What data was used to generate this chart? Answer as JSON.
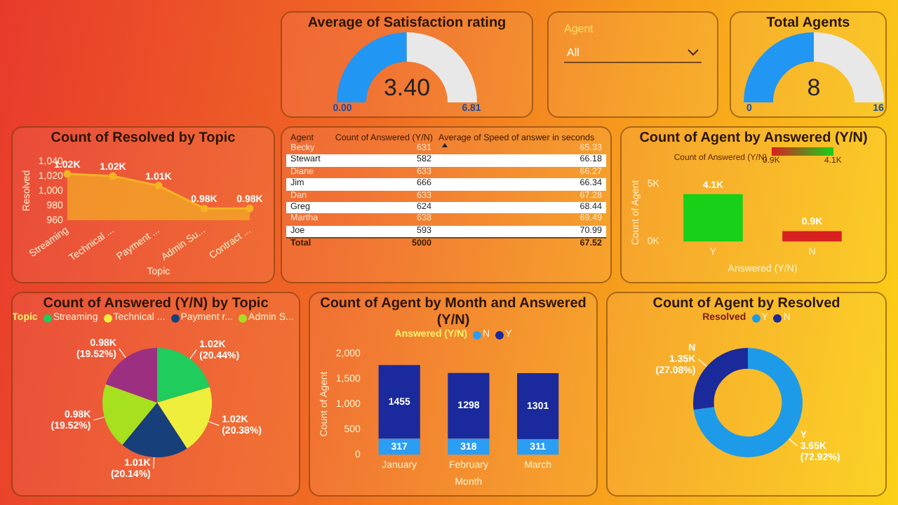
{
  "chart_data": [
    {
      "type": "donut",
      "title": "Average of Satisfaction rating",
      "categories": [
        null,
        null
      ],
      "values": [
        3.4,
        3.41
      ],
      "value_labels": [
        "3.40",
        null
      ],
      "colors": [
        "#2196f3",
        "#e8e8e8"
      ],
      "annotations": [
        "0.00",
        "6.81"
      ]
    },
    {
      "type": "other",
      "title": "Agent",
      "annotations": [
        "All"
      ]
    },
    {
      "type": "donut",
      "title": "Total Agents",
      "categories": [
        null,
        null
      ],
      "values": [
        8,
        8
      ],
      "value_labels": [
        "8",
        null
      ],
      "colors": [
        "#2196f3",
        "#e8e8e8"
      ],
      "annotations": [
        "0",
        "16"
      ]
    },
    {
      "type": "area",
      "title": "Count of Resolved by Topic",
      "categories": [
        "Streaming",
        "Technical ...",
        "Payment ...",
        "Admin Su...",
        "Contract ..."
      ],
      "values": [
        1023,
        1020,
        1007,
        976,
        976
      ],
      "value_labels": [
        "1.02K",
        "1.02K",
        "1.01K",
        "0.98K",
        "0.98K"
      ],
      "color": "#f5b324",
      "marker": "circle",
      "xlabel": "Topic",
      "ylabel": "Resolved",
      "ylim": [
        960,
        1040
      ],
      "yticks": [
        960,
        980,
        {
          "value": 1000,
          "label": "1,000"
        },
        {
          "value": 1020,
          "label": "1,020"
        },
        {
          "value": 1040,
          "label": "1,040"
        }
      ]
    },
    {
      "type": "other",
      "xlabel": "Agent",
      "categories": [
        "Becky",
        "Stewart",
        "Diane",
        "Jim",
        "Dan",
        "Greg",
        "Martha",
        "Joe",
        "Total"
      ],
      "data_labels": true,
      "series": [
        {
          "name": "Count of Answered (Y/N)",
          "values": [
            631,
            582,
            633,
            666,
            633,
            624,
            638,
            593,
            5000
          ]
        },
        {
          "name": "Average of Speed of answer in seconds",
          "values": [
            65.33,
            66.18,
            66.27,
            66.34,
            67.28,
            68.44,
            69.49,
            70.99,
            67.52
          ]
        }
      ]
    },
    {
      "type": "bar",
      "title": "Count of Agent by Answered (Y/N)",
      "categories": [
        "Y",
        "N"
      ],
      "values": [
        4100,
        900
      ],
      "value_labels": [
        "4.1K",
        "0.9K"
      ],
      "colors": [
        "#18d018",
        "#d82020"
      ],
      "xlabel": "Answered (Y/N)",
      "ylabel": "Count of Agent",
      "ylim": [
        0,
        5000
      ],
      "yticks": [
        {
          "value": 0,
          "label": "0K"
        },
        {
          "value": 5000,
          "label": "5K"
        }
      ],
      "clabel": "Count of Answered (Y/N)",
      "clim": [
        900,
        4100
      ],
      "cticks": [
        {
          "value": 900,
          "label": "0.9K"
        },
        {
          "value": 4100,
          "label": "4.1K"
        }
      ]
    },
    {
      "type": "pie",
      "title": "Count of Answered (Y/N) by Topic",
      "categories": [
        "Streaming",
        "Technical ...",
        "Payment r...",
        "Admin S...",
        null
      ],
      "values": [
        20.44,
        20.38,
        20.14,
        19.52,
        19.52
      ],
      "value_labels": [
        "1.02K (20.44%)",
        "1.02K (20.38%)",
        "1.01K (20.14%)",
        "0.98K (19.52%)",
        "0.98K (19.52%)"
      ],
      "colors": [
        "#1fcc5c",
        "#f0ee3c",
        "#17407a",
        "#a6e01e",
        "#9c2f80"
      ],
      "legend_title": "Topic",
      "legend": "top"
    },
    {
      "type": "bar",
      "stacked": true,
      "title": "Count of Agent by Month and Answered (Y/N)",
      "categories": [
        "January",
        "February",
        "March"
      ],
      "series": [
        {
          "name": "N",
          "color": "#2a9df4",
          "values": [
            317,
            318,
            311
          ]
        },
        {
          "name": "Y",
          "color": "#1a2a9c",
          "values": [
            1455,
            1298,
            1301
          ]
        }
      ],
      "xlabel": "Month",
      "ylabel": "Count of Agent",
      "ylim": [
        0,
        2000
      ],
      "yticks": [
        0,
        500,
        {
          "value": 1000,
          "label": "1,000"
        },
        {
          "value": 1500,
          "label": "1,500"
        },
        {
          "value": 2000,
          "label": "2,000"
        }
      ],
      "legend_title": "Answered (Y/N)",
      "legend": "top",
      "data_labels": true
    },
    {
      "type": "donut",
      "title": "Count of Agent by Resolved",
      "categories": [
        "Y",
        "N"
      ],
      "values": [
        72.92,
        27.08
      ],
      "value_labels": [
        "3.65K (72.92%)",
        "1.35K (27.08%)"
      ],
      "colors": [
        "#1e9be8",
        "#1a2a9a"
      ],
      "legend_title": "Resolved",
      "legend": "top"
    }
  ]
}
